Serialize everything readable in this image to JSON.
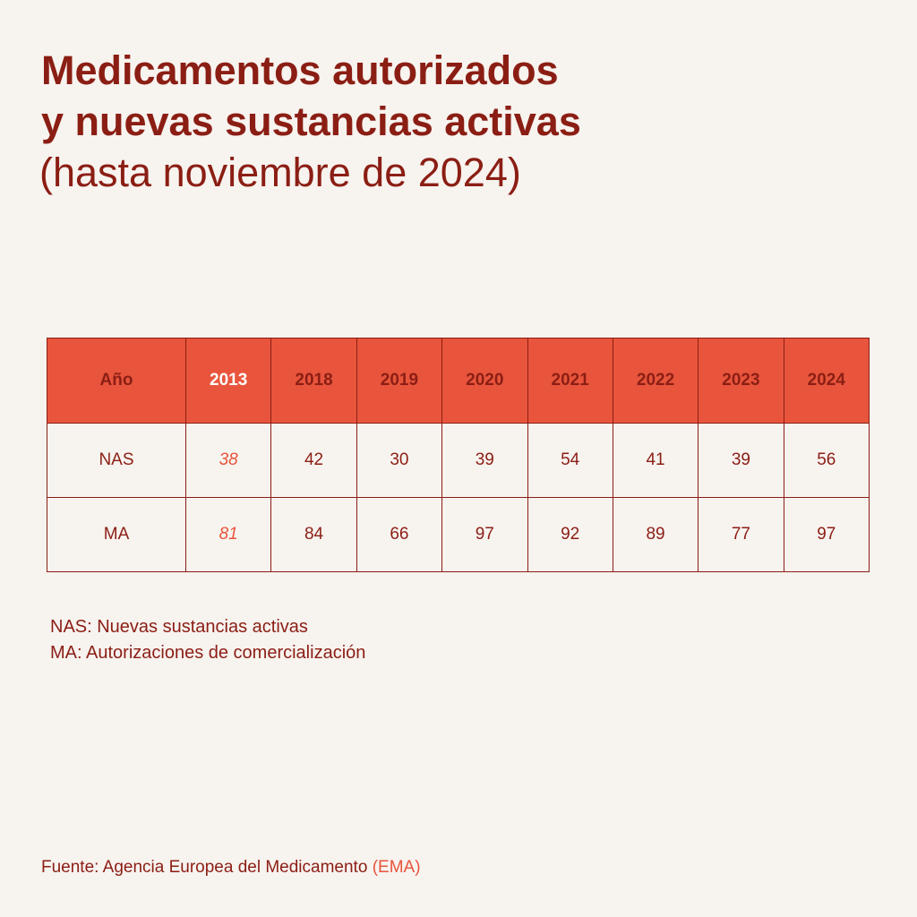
{
  "chart_data": {
    "type": "table",
    "title_line1": "Medicamentos autorizados",
    "title_line2": "y nuevas sustancias activas",
    "subtitle": "(hasta noviembre de 2024)",
    "header_label": "Año",
    "categories": [
      "2013",
      "2018",
      "2019",
      "2020",
      "2021",
      "2022",
      "2023",
      "2024"
    ],
    "highlight_category": "2013",
    "series": [
      {
        "name": "NAS",
        "values": [
          38,
          42,
          30,
          39,
          54,
          41,
          39,
          56
        ]
      },
      {
        "name": "MA",
        "values": [
          81,
          84,
          66,
          97,
          92,
          89,
          77,
          97
        ]
      }
    ]
  },
  "legend": {
    "nas": "NAS: Nuevas sustancias activas",
    "ma": "MA: Autorizaciones de comercialización"
  },
  "source": {
    "prefix": "Fuente: Agencia Europea del Medicamento",
    "accent": "(EMA)"
  },
  "colors": {
    "background": "#f7f3ef",
    "dark_red": "#8b1e14",
    "accent_orange": "#e8553c",
    "header_highlight_text": "#ffffff"
  }
}
